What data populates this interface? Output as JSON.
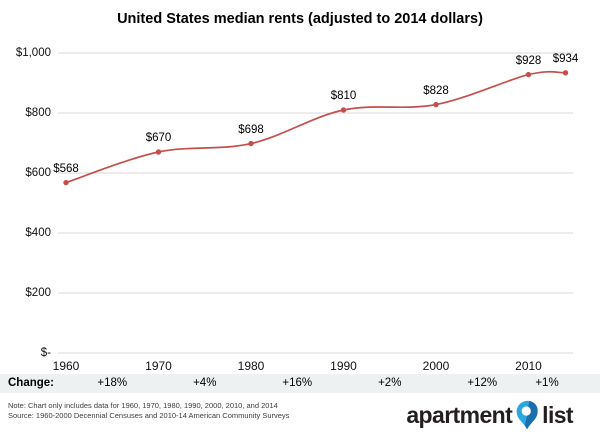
{
  "title": "United States median rents (adjusted to 2014 dollars)",
  "chart_data": {
    "type": "line",
    "x": [
      1960,
      1970,
      1980,
      1990,
      2000,
      2010,
      2014
    ],
    "values": [
      568,
      670,
      698,
      810,
      828,
      928,
      934
    ],
    "point_labels": [
      "$568",
      "$670",
      "$698",
      "$810",
      "$828",
      "$928",
      "$934"
    ],
    "x_tick_labels": [
      "1960",
      "1970",
      "1980",
      "1990",
      "2000",
      "2010"
    ],
    "x_tick_years": [
      1960,
      1970,
      1980,
      1990,
      2000,
      2010
    ],
    "y_ticks": [
      {
        "label": "$1,000",
        "value": 1000
      },
      {
        "label": "$800",
        "value": 800
      },
      {
        "label": "$600",
        "value": 600
      },
      {
        "label": "$400",
        "value": 400
      },
      {
        "label": "$200",
        "value": 200
      },
      {
        "label": "$-",
        "value": 0
      }
    ],
    "ylim": [
      0,
      1000
    ],
    "grid": "horizontal",
    "legend": "none",
    "smoothed_line": true
  },
  "change_row": {
    "label": "Change:",
    "values": [
      "+18%",
      "+4%",
      "+16%",
      "+2%",
      "+12%",
      "+1%"
    ]
  },
  "footnotes": {
    "note": "Note: Chart only includes data for 1960, 1970, 1980, 1990, 2000, 2010, and 2014",
    "source": "Source: 1960-2000 Decennial Censuses and 2010-14 American Community Surveys"
  },
  "logo": {
    "word1": "apartment",
    "word2": "list"
  },
  "colors": {
    "line": "#c5504b",
    "gridline": "#d9d9d9",
    "change_row_bg": "#eef1f2",
    "pin_light": "#29a8e0",
    "pin_dark": "#1c6fad",
    "logo_text": "#231f20"
  }
}
